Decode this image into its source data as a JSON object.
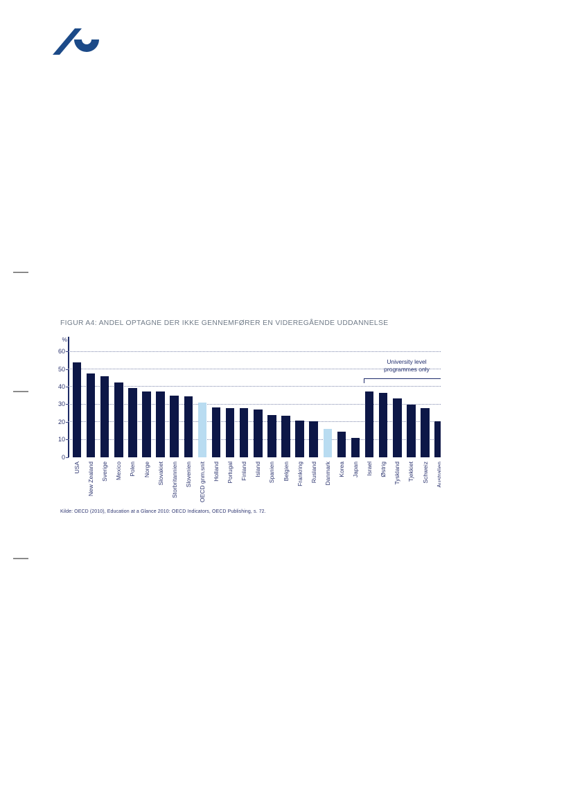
{
  "logo": {
    "name": "aarhus-university-logo",
    "color": "#1c4a88"
  },
  "colors": {
    "bar_navy": "#0d1747",
    "highlight_light_blue": "#b9dcf1",
    "title_gray": "#6f7a87",
    "axis_text_navy": "#2c346f",
    "annotation_navy": "#1e2b6b"
  },
  "chart_data": {
    "type": "bar",
    "title": "FIGUR A4: ANDEL OPTAGNE DER IKKE GENNEMFØRER EN VIDEREGÅENDE UDDANNELSE",
    "unit_label": "%",
    "categories": [
      "USA",
      "New Zealand",
      "Sverige",
      "Mexico",
      "Polen",
      "Norge",
      "Slovakiet",
      "Storbritannien",
      "Slovenien",
      "OECD gnm.snit",
      "Holland",
      "Portugal",
      "Finland",
      "Island",
      "Spanien",
      "Belgien",
      "Frankring",
      "Rusland",
      "Danmark",
      "Korea",
      "Japan",
      "Israel",
      "Østrig",
      "Tyskland",
      "Tjekkiet",
      "Schweiz",
      "Australien"
    ],
    "values": [
      54,
      47.5,
      46,
      42.5,
      39.5,
      37.5,
      37.5,
      35,
      34.5,
      31,
      28.5,
      28,
      28,
      27,
      24,
      23.5,
      21,
      20.5,
      16,
      14.5,
      11,
      37.5,
      36.5,
      33.5,
      30,
      28,
      20.5
    ],
    "highlight_indices": [
      9,
      18
    ],
    "bar_color": "#0d1747",
    "highlight_color": "#b9dcf1",
    "ylim": [
      0,
      60
    ],
    "yticks": [
      0,
      10,
      20,
      30,
      40,
      50,
      60
    ],
    "grid": "horizontal dotted",
    "annotation": "University level\nprogrammes only",
    "annotation_applies_to": "Israel through Australien",
    "clipped_at_right_edge": true,
    "source": "Kilde: OECD (2010), Education at a Glance 2010: OECD Indicators, OECD Publishing, s. 72."
  }
}
